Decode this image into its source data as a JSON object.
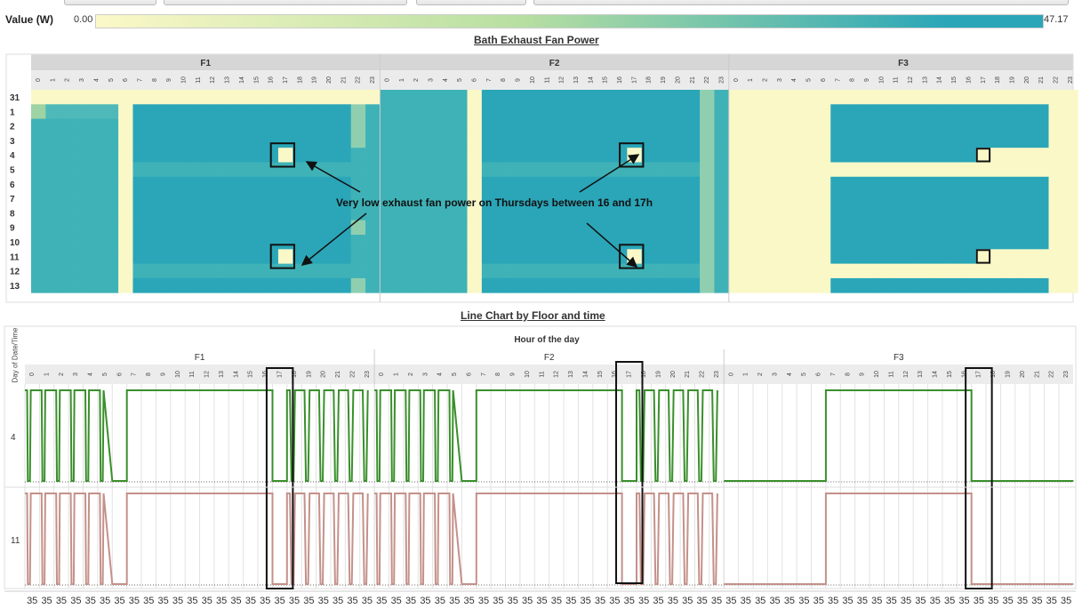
{
  "legend": {
    "label": "Value (W)",
    "min": "0.00",
    "max": "47.17",
    "color_low": "#fbf8c8",
    "color_mid": "#b7dfa1",
    "color_high": "#2aa6b8"
  },
  "heatmap": {
    "title": "Bath Exhaust Fan Power",
    "floors": [
      "F1",
      "F2",
      "F3"
    ],
    "hours": [
      "0",
      "1",
      "2",
      "3",
      "4",
      "5",
      "6",
      "7",
      "8",
      "9",
      "10",
      "11",
      "12",
      "13",
      "14",
      "15",
      "16",
      "17",
      "18",
      "19",
      "20",
      "21",
      "22",
      "23"
    ],
    "days": [
      "31",
      "1",
      "2",
      "3",
      "4",
      "5",
      "6",
      "7",
      "8",
      "9",
      "10",
      "11",
      "12",
      "13"
    ],
    "annotation": "Very low exhaust fan power on Thursdays between 16 and 17h"
  },
  "linechart": {
    "title": "Line Chart by Floor and time",
    "column_header": "Hour of the day",
    "row_header": "Day of Date/Time",
    "floors": [
      "F1",
      "F2",
      "F3"
    ],
    "hours": [
      "0",
      "1",
      "2",
      "3",
      "4",
      "5",
      "6",
      "7",
      "8",
      "9",
      "10",
      "11",
      "12",
      "13",
      "14",
      "15",
      "16",
      "17",
      "18",
      "19",
      "20",
      "21",
      "22",
      "23"
    ],
    "rows": [
      "4",
      "11"
    ],
    "footer_value": "35",
    "series_colors": {
      "4": "#3a8f2c",
      "11": "#c4918a"
    }
  },
  "chart_data": [
    {
      "type": "heatmap",
      "title": "Bath Exhaust Fan Power",
      "columns": "hour of day (0-23) per floor F1, F2, F3",
      "rows": [
        "31",
        "1",
        "2",
        "3",
        "4",
        "5",
        "6",
        "7",
        "8",
        "9",
        "10",
        "11",
        "12",
        "13"
      ],
      "value_unit": "W",
      "value_range": [
        0.0,
        47.17
      ],
      "levels": {
        "off": 0.0,
        "mid": 38,
        "high": 45
      },
      "F1": {
        "off_hours": [
          6,
          23
        ],
        "day31_off_all": true,
        "day1_note": "low values hours 0-5",
        "weekend_days": [
          "5",
          "12"
        ],
        "high_hours": [
          7,
          21
        ],
        "low_cells": [
          [
            "4",
            17
          ],
          [
            "11",
            17
          ]
        ]
      },
      "F2": {
        "off_hours": [
          6,
          22
        ],
        "weekend_days": [
          "5",
          "12"
        ],
        "high_hours": [
          7,
          21
        ],
        "low_cells": [
          [
            "4",
            17
          ],
          [
            "11",
            17
          ]
        ]
      },
      "F3": {
        "on_hours": [
          7,
          21
        ],
        "off_days": [
          "31",
          "5",
          "12"
        ],
        "low_cells": [
          [
            "4",
            17
          ],
          [
            "11",
            17
          ]
        ]
      }
    },
    {
      "type": "line",
      "title": "Line Chart by Floor and time",
      "x": "hour of day per floor",
      "series": [
        {
          "name": "4",
          "F1_on_hours": [
            0,
            1,
            2,
            3,
            4,
            5,
            6,
            7,
            8,
            9,
            10,
            11,
            12,
            13,
            14,
            15,
            16,
            18,
            19,
            20,
            21,
            22,
            23
          ],
          "F2_on_hours": [
            0,
            1,
            2,
            3,
            4,
            5,
            6,
            7,
            8,
            9,
            10,
            11,
            12,
            13,
            14,
            15,
            16,
            18,
            19,
            20,
            21,
            22,
            23
          ],
          "F3_on_hours": [
            7,
            8,
            9,
            10,
            11,
            12,
            13,
            14,
            15,
            16
          ]
        },
        {
          "name": "11",
          "F1_on_hours": [
            0,
            1,
            2,
            3,
            4,
            5,
            6,
            7,
            8,
            9,
            10,
            11,
            12,
            13,
            14,
            15,
            16,
            18,
            19,
            20,
            21,
            22,
            23
          ],
          "F2_on_hours": [
            0,
            1,
            2,
            3,
            4,
            5,
            6,
            7,
            8,
            9,
            10,
            11,
            12,
            13,
            14,
            15,
            16,
            18,
            19,
            20,
            21,
            22,
            23
          ],
          "F3_on_hours": [
            7,
            8,
            9,
            10,
            11,
            12,
            13,
            14,
            15,
            16
          ]
        }
      ],
      "highlight_hour": 17
    }
  ]
}
